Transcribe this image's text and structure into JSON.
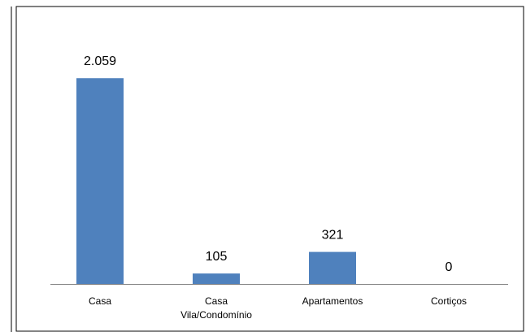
{
  "chart_data": {
    "type": "bar",
    "categories": [
      "Casa",
      "Casa Vila/Condomínio",
      "Apartamentos",
      "Cortiços"
    ],
    "values": [
      2059,
      105,
      321,
      0
    ],
    "value_labels": [
      "2.059",
      "105",
      "321",
      "0"
    ],
    "color": "#4f81bd",
    "ylim": [
      0,
      2500
    ]
  }
}
